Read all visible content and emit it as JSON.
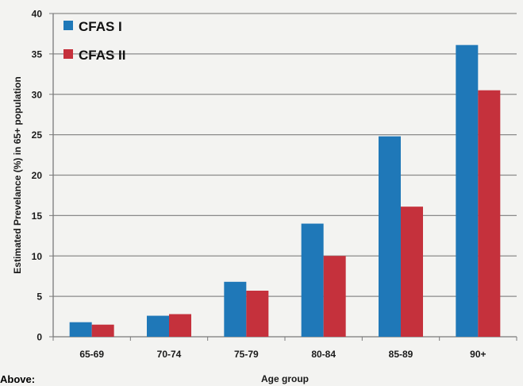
{
  "chart_data": {
    "type": "bar",
    "title": "",
    "xlabel": "Age group",
    "ylabel": "Estimated Prevelance (%) in 65+ population",
    "categories": [
      "65-69",
      "70-74",
      "75-79",
      "80-84",
      "85-89",
      "90+"
    ],
    "series": [
      {
        "name": "CFAS I",
        "values": [
          1.8,
          2.6,
          6.8,
          14.0,
          24.8,
          36.1
        ],
        "color": "#1f78b8"
      },
      {
        "name": "CFAS II",
        "values": [
          1.5,
          2.8,
          5.7,
          10.0,
          16.1,
          30.5
        ],
        "color": "#c5313c"
      }
    ],
    "ylim": [
      0,
      40
    ],
    "yticks": [
      0,
      5,
      10,
      15,
      20,
      25,
      30,
      35,
      40
    ],
    "grid": true,
    "legend_position": "top-left"
  },
  "footer_text": "Above:"
}
